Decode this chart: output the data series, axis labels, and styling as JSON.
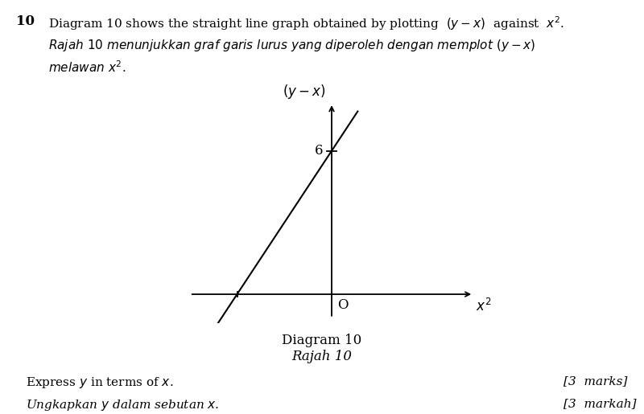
{
  "background_color": "#ffffff",
  "question_number": "10",
  "line1_en_pre": "Diagram 10 shows the straight line graph obtained by plotting ",
  "line1_en_math": "$(y - x)$",
  "line1_en_post": " against ",
  "line1_en_math2": "$x^2$",
  "line1_en_end": ".",
  "line2_ms": "Rajah 10 menunjukkan graf garis lurus yang diperoleh dengan memplot $(y - x)$",
  "line3_ms": "melawan $x^2$.",
  "diagram_label_en": "Diagram 10",
  "diagram_label_ms": "Rajah 10",
  "y_intercept": 6,
  "axis_xlabel": "$x^2$",
  "axis_ylabel": "$(y - x)$",
  "origin_label": "O",
  "y_tick_label": "6",
  "instruction_en": "Express $y$ in terms of $x$.",
  "instruction_ms": "Ungkapkan $y$ dalam sebutan $x$.",
  "marks_en": "[3  marks]",
  "marks_ms": "[3  markah]",
  "xlim": [
    -3.2,
    3.2
  ],
  "ylim": [
    -1.2,
    8.5
  ],
  "line_slope": 3.0,
  "line_x_start": -2.6,
  "line_x_end": 0.55,
  "x_intercept": -2.0
}
